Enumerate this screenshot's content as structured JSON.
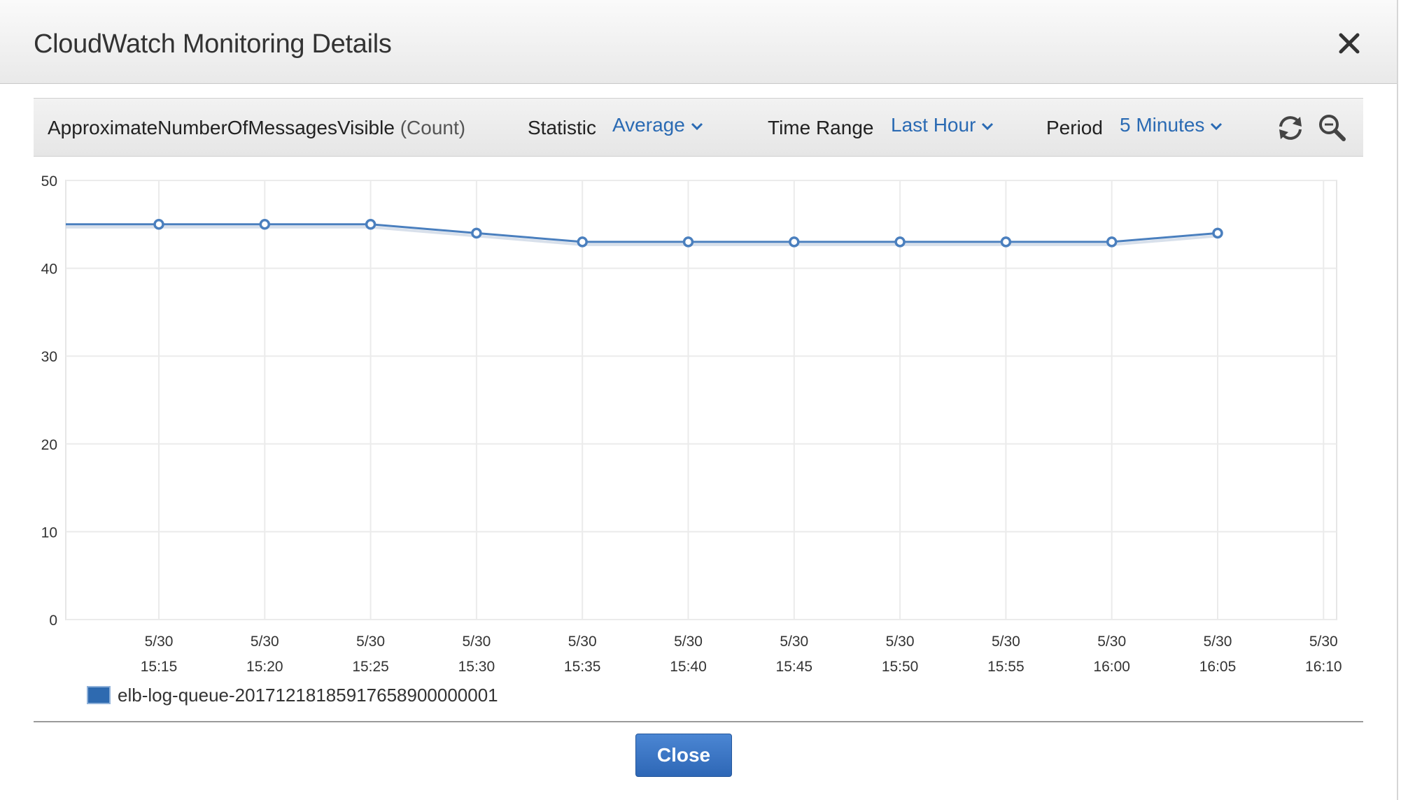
{
  "dialog": {
    "title": "CloudWatch Monitoring Details",
    "close_icon": "close-x-icon"
  },
  "toolbar": {
    "metric_name": "ApproximateNumberOfMessagesVisible",
    "metric_unit": "(Count)",
    "statistic_label": "Statistic",
    "statistic_value": "Average",
    "time_range_label": "Time Range",
    "time_range_value": "Last Hour",
    "period_label": "Period",
    "period_value": "5 Minutes",
    "refresh_icon": "refresh-icon",
    "zoom_icon": "zoom-icon"
  },
  "colors": {
    "link": "#2a6ab3",
    "series": "#4a7fbe",
    "button": "#2e67b6"
  },
  "chart_data": {
    "type": "line",
    "title": "",
    "xlabel": "",
    "ylabel": "",
    "ylim": [
      0,
      50
    ],
    "yticks": [
      0,
      10,
      20,
      30,
      40,
      50
    ],
    "x_ticks": [
      {
        "date": "5/30",
        "time": "15:15"
      },
      {
        "date": "5/30",
        "time": "15:20"
      },
      {
        "date": "5/30",
        "time": "15:25"
      },
      {
        "date": "5/30",
        "time": "15:30"
      },
      {
        "date": "5/30",
        "time": "15:35"
      },
      {
        "date": "5/30",
        "time": "15:40"
      },
      {
        "date": "5/30",
        "time": "15:45"
      },
      {
        "date": "5/30",
        "time": "15:50"
      },
      {
        "date": "5/30",
        "time": "15:55"
      },
      {
        "date": "5/30",
        "time": "16:00"
      },
      {
        "date": "5/30",
        "time": "16:05"
      },
      {
        "date": "5/30",
        "time": "16:10"
      }
    ],
    "grid": true,
    "legend_position": "bottom-left",
    "series": [
      {
        "name": "elb-log-queue-20171218185917658900000001",
        "color": "#4a7fbe",
        "points": [
          {
            "x": "15:10",
            "y": 45
          },
          {
            "x": "15:15",
            "y": 45
          },
          {
            "x": "15:20",
            "y": 45
          },
          {
            "x": "15:25",
            "y": 45
          },
          {
            "x": "15:30",
            "y": 44
          },
          {
            "x": "15:35",
            "y": 43
          },
          {
            "x": "15:40",
            "y": 43
          },
          {
            "x": "15:45",
            "y": 43
          },
          {
            "x": "15:50",
            "y": 43
          },
          {
            "x": "15:55",
            "y": 43
          },
          {
            "x": "16:00",
            "y": 43
          },
          {
            "x": "16:05",
            "y": 44
          }
        ]
      }
    ]
  },
  "footer": {
    "close_label": "Close"
  }
}
